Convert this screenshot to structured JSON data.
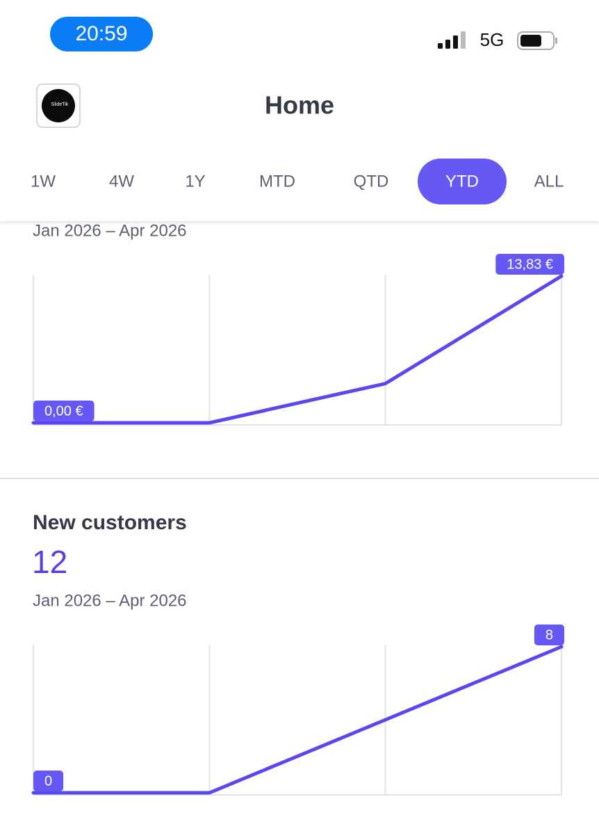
{
  "status_bar": {
    "time": "20:59",
    "network": "5G"
  },
  "header": {
    "logo_text": "SlideTik",
    "title": "Home"
  },
  "tabs": [
    "1W",
    "4W",
    "1Y",
    "MTD",
    "QTD",
    "YTD",
    "ALL"
  ],
  "selected_tab": 5,
  "cards": [
    {
      "date_range": "Jan 2026 – Apr 2026",
      "chart": {
        "type": "line",
        "categories": [
          null,
          null,
          null,
          null
        ],
        "values": [
          0,
          0,
          3.7,
          13.83
        ],
        "value_labels": [
          "0,00 €",
          null,
          null,
          "13,83 €"
        ],
        "ylim": [
          0,
          13.83
        ],
        "color": "#5a47f0"
      }
    },
    {
      "title": "New customers",
      "value": "12",
      "date_range": "Jan 2026 – Apr 2026",
      "chart": {
        "type": "line",
        "categories": [
          null,
          null,
          null,
          null
        ],
        "values": [
          0,
          0,
          4,
          8
        ],
        "value_labels": [
          "0",
          null,
          null,
          "8"
        ],
        "ylim": [
          0,
          8
        ],
        "color": "#5a47f0"
      }
    }
  ]
}
